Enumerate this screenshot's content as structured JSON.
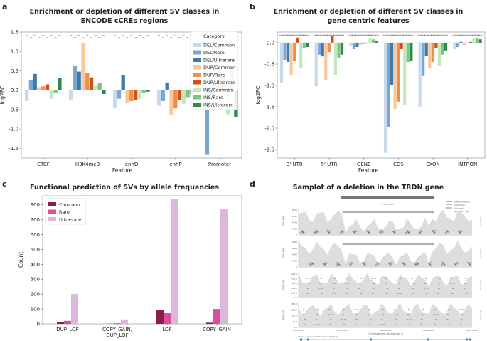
{
  "panels": {
    "a": {
      "letter": "a",
      "title_lines": [
        "Enrichment or depletion of different SV classes in",
        "ENCODE cCREs regions"
      ]
    },
    "b": {
      "letter": "b",
      "title_lines": [
        "Enrichment or depletion of different SV classes in",
        "gene centric features"
      ]
    },
    "c": {
      "letter": "c",
      "title": "Functional prediction of SVs by allele frequencies"
    },
    "d": {
      "letter": "d",
      "title": "Samplot of a deletion in the TRDN gene"
    }
  },
  "colors": {
    "DEL/Common": "#c9d9ec",
    "DEL/Rare": "#7aa6d2",
    "DEL/Ultrarare": "#3d7ab2",
    "DUP/Common": "#f8c79c",
    "DUP/Rare": "#ee8e48",
    "DUP/Ultrarare": "#cf4f14",
    "INS/Common": "#c4e6bc",
    "INS/Rare": "#7dc47f",
    "INS/Ultrarare": "#2a8a4c",
    "Common": "#8f1a4e",
    "Rare": "#d84f9a",
    "Ultra-rare": "#dbb7db"
  },
  "chart_data": [
    {
      "panel": "a",
      "type": "bar",
      "title": "Enrichment or depletion of different SV classes in ENCODE cCREs regions",
      "xlabel": "Feature",
      "ylabel": "log2FC",
      "ylim": [
        -1.75,
        1.5
      ],
      "yticks": [
        "-1.5",
        "-1.0",
        "-0.5",
        "0.0",
        "0.5",
        "1.0",
        "1.5"
      ],
      "categories": [
        "CTCF",
        "H3K4me3",
        "enhD",
        "enhP",
        "Promoter"
      ],
      "legend_title": "Category",
      "significance_mark": "ns",
      "series": [
        {
          "name": "DEL/Common",
          "values": [
            -0.28,
            -0.26,
            -0.46,
            -0.4,
            -0.4
          ]
        },
        {
          "name": "DEL/Rare",
          "values": [
            0.27,
            0.62,
            -0.22,
            -0.28,
            -1.67
          ]
        },
        {
          "name": "DEL/Ultrarare",
          "values": [
            0.42,
            0.48,
            0.38,
            0.2,
            -0.14
          ]
        },
        {
          "name": "DUP/Common",
          "values": [
            0.08,
            1.22,
            -0.32,
            -0.63,
            0.12
          ]
        },
        {
          "name": "DUP/Rare",
          "values": [
            0.1,
            0.44,
            -0.28,
            -0.47,
            0.47
          ]
        },
        {
          "name": "DUP/Ultrarare",
          "values": [
            0.15,
            0.33,
            -0.26,
            -0.25,
            0.37
          ]
        },
        {
          "name": "INS/Common",
          "values": [
            -0.22,
            0.12,
            -0.23,
            -0.35,
            -0.62
          ]
        },
        {
          "name": "INS/Rare",
          "values": [
            -0.06,
            0.18,
            -0.08,
            -0.18,
            0.52
          ]
        },
        {
          "name": "INS/Ultrarare",
          "values": [
            0.32,
            -0.1,
            -0.04,
            -0.1,
            -0.7
          ]
        }
      ]
    },
    {
      "panel": "b",
      "type": "bar",
      "title": "Enrichment or depletion of different SV classes in gene centric features",
      "xlabel": "Feature",
      "ylabel": "log2FC",
      "ylim": [
        -2.7,
        0.25
      ],
      "yticks": [
        "-2.5",
        "-2.0",
        "-1.5",
        "-1.0",
        "-0.5",
        "0.0"
      ],
      "categories": [
        "3' UTR",
        "5' UTR",
        "GENE",
        "CDS",
        "EXON",
        "INTRON"
      ],
      "significance_mark": "****",
      "series": [
        {
          "name": "DEL/Common",
          "values": [
            -0.95,
            -1.02,
            -0.08,
            -2.58,
            -1.5,
            -0.15
          ]
        },
        {
          "name": "DEL/Rare",
          "values": [
            -0.4,
            -0.28,
            -0.15,
            -1.97,
            -0.78,
            -0.1
          ]
        },
        {
          "name": "DEL/Ultrarare",
          "values": [
            -0.45,
            -0.32,
            -0.1,
            -1.0,
            -0.3,
            0.02
          ]
        },
        {
          "name": "DUP/Common",
          "values": [
            -0.75,
            -0.88,
            -0.05,
            -1.55,
            -0.6,
            -0.05
          ]
        },
        {
          "name": "DUP/Rare",
          "values": [
            -0.42,
            -0.22,
            -0.03,
            -1.38,
            -0.45,
            0.0
          ]
        },
        {
          "name": "DUP/Ultrarare",
          "values": [
            0.12,
            0.15,
            -0.02,
            -0.15,
            -0.12,
            0.02
          ]
        },
        {
          "name": "INS/Common",
          "values": [
            -0.6,
            -0.75,
            0.1,
            -1.45,
            -0.55,
            0.12
          ]
        },
        {
          "name": "INS/Rare",
          "values": [
            -0.12,
            -0.35,
            0.08,
            -0.45,
            -0.28,
            0.1
          ]
        },
        {
          "name": "INS/Ultrarare",
          "values": [
            -0.1,
            -0.28,
            0.05,
            -0.42,
            -0.18,
            0.08
          ]
        }
      ]
    },
    {
      "panel": "c",
      "type": "bar",
      "title": "Functional prediction of SVs by allele frequencies",
      "xlabel": "",
      "ylabel": "Count",
      "ylim": [
        0,
        860
      ],
      "yticks": [
        "0",
        "100",
        "200",
        "300",
        "400",
        "500",
        "600",
        "700",
        "800"
      ],
      "categories": [
        "DUP_LOF",
        "COPY_GAIN,\nDUP_LOF",
        "LOF",
        "COPY_GAIN"
      ],
      "series": [
        {
          "name": "Common",
          "values": [
            10,
            1,
            93,
            8
          ]
        },
        {
          "name": "Rare",
          "values": [
            20,
            4,
            75,
            100
          ]
        },
        {
          "name": "Ultra-rare",
          "values": [
            200,
            30,
            840,
            770
          ]
        }
      ]
    },
    {
      "panel": "d",
      "type": "other",
      "title": "Samplot of a deletion in the TRDN gene",
      "deletion_label": "6.43 kb DEL",
      "legend": [
        "Deletion/normal",
        "Duplication",
        "Split read",
        "Paired-end read"
      ],
      "track_y_label": "Insert size",
      "track_right_label": "Coverage",
      "track_ticks": [
        [
          "8875",
          "6657",
          "4439",
          "2222",
          "0"
        ],
        [
          "8801",
          "6601",
          "4402",
          "2201",
          "0"
        ],
        [
          "402.0",
          "418.5",
          "313.5",
          "209.0",
          "104.5",
          "0.0"
        ],
        [
          "380.0",
          "285.0",
          "190.0",
          "95.0",
          "0.0"
        ]
      ],
      "x_ticks": [
        "122235000",
        "122236000",
        "122237000",
        "122238000",
        "122239000"
      ],
      "xlabel": "Chromosomal position on 6",
      "gene_track_label": "Homo_sapiens.GRCh38.100.sort.gff3.gz"
    }
  ]
}
